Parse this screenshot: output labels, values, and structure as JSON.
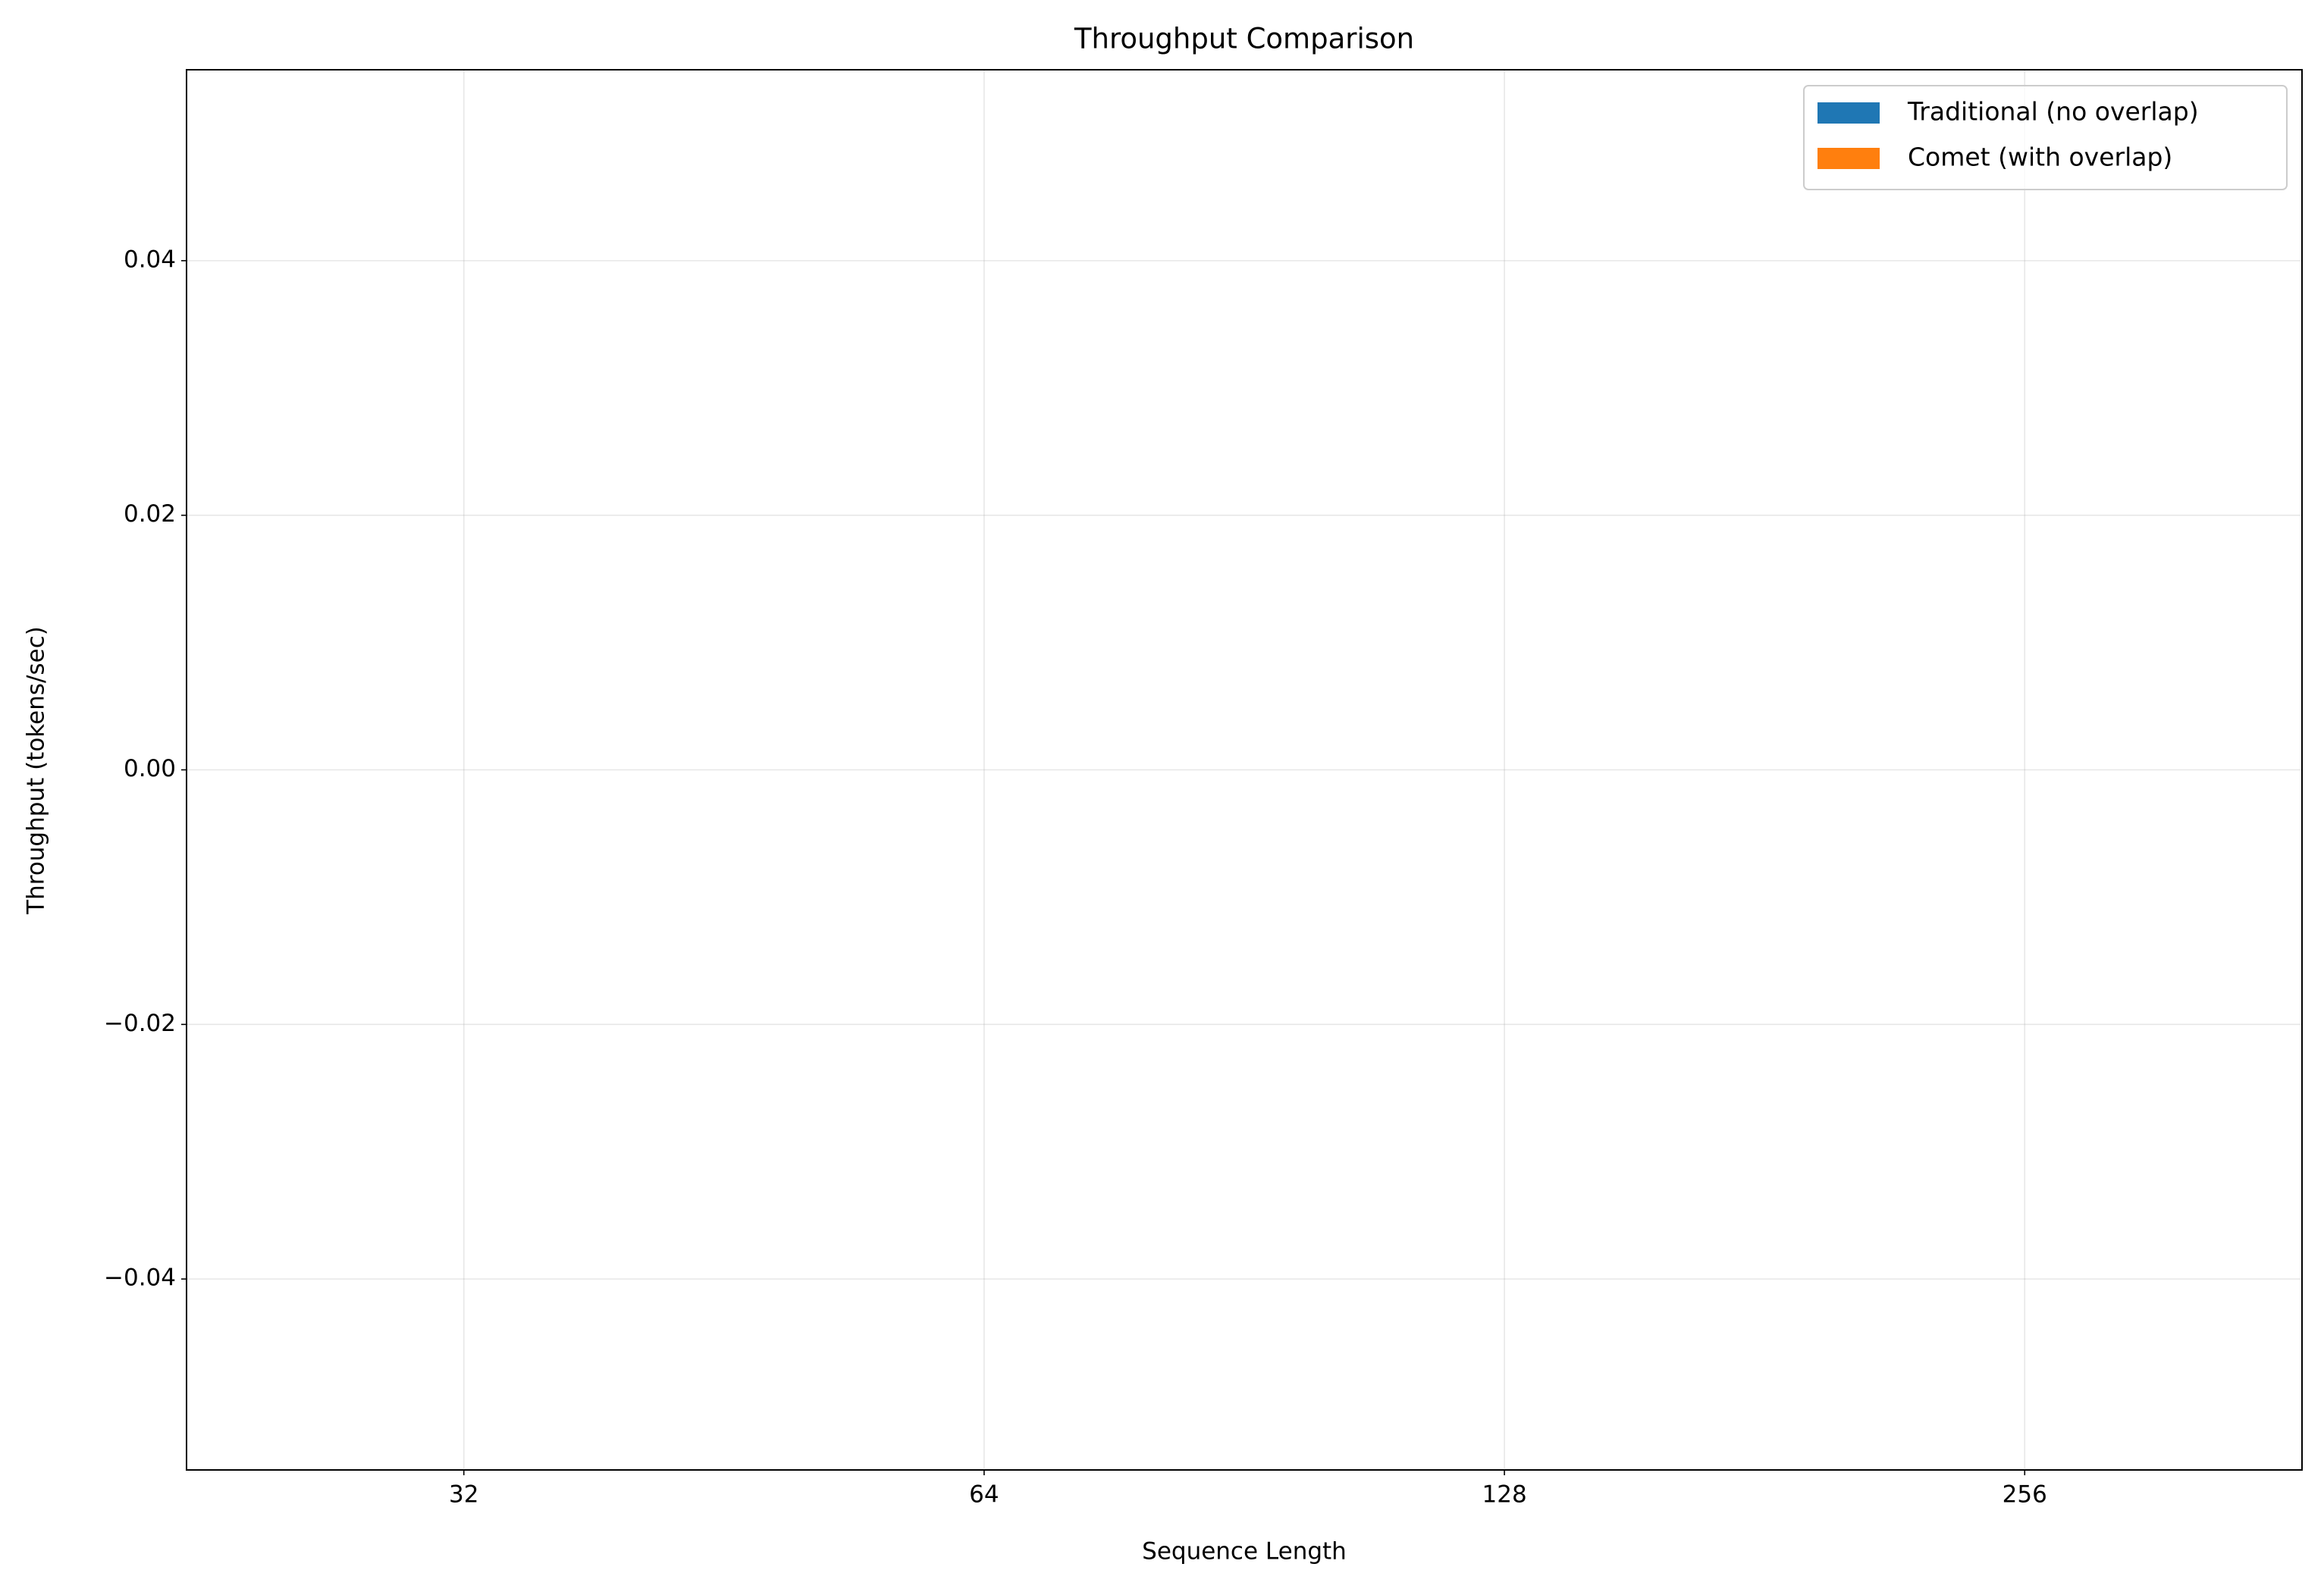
{
  "chart_data": {
    "type": "bar",
    "title": "Throughput Comparison",
    "x_label": "Sequence Length",
    "y_label": "Throughput (tokens/sec)",
    "categories": [
      "32",
      "64",
      "128",
      "256"
    ],
    "series": [
      {
        "name": "Traditional (no overlap)",
        "color": "#1f77b4",
        "values": [
          0,
          0,
          0,
          0
        ]
      },
      {
        "name": "Comet (with overlap)",
        "color": "#ff7f0e",
        "values": [
          0,
          0,
          0,
          0
        ]
      }
    ],
    "ylim": [
      -0.055,
      0.055
    ],
    "yticks": [
      {
        "value": -0.04,
        "label": "−0.04"
      },
      {
        "value": -0.02,
        "label": "−0.02"
      },
      {
        "value": 0,
        "label": "0.00"
      },
      0.02,
      0.04
    ],
    "grid": true,
    "legend": "upper right"
  }
}
